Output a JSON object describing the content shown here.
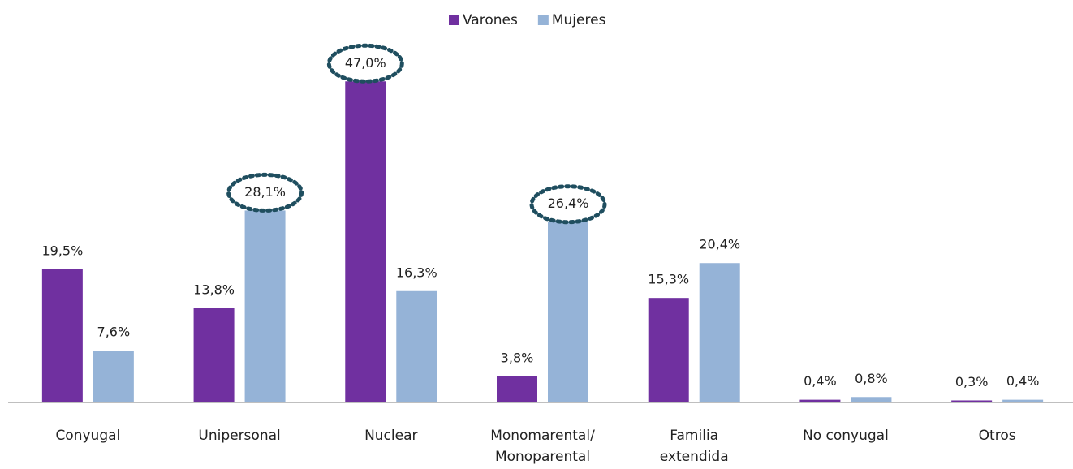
{
  "chart_data": {
    "type": "bar",
    "categories": [
      "Conyugal",
      "Unipersonal",
      "Nuclear",
      "Monomarental/\nMonoparental",
      "Familia\nextendida",
      "No conyugal",
      "Otros"
    ],
    "series": [
      {
        "name": "Varones",
        "color": "#7030a0",
        "values": [
          19.5,
          13.8,
          47.0,
          3.8,
          15.3,
          0.4,
          0.3
        ],
        "value_labels": [
          "19,5%",
          "13,8%",
          "47,0%",
          "3,8%",
          "15,3%",
          "0,4%",
          "0,3%"
        ]
      },
      {
        "name": "Mujeres",
        "color": "#95b3d7",
        "values": [
          7.6,
          28.1,
          16.3,
          26.4,
          20.4,
          0.8,
          0.4
        ],
        "value_labels": [
          "7,6%",
          "28,1%",
          "16,3%",
          "26,4%",
          "20,4%",
          "0,8%",
          "0,4%"
        ]
      }
    ],
    "ylim": [
      0,
      50
    ],
    "legend": "top"
  }
}
